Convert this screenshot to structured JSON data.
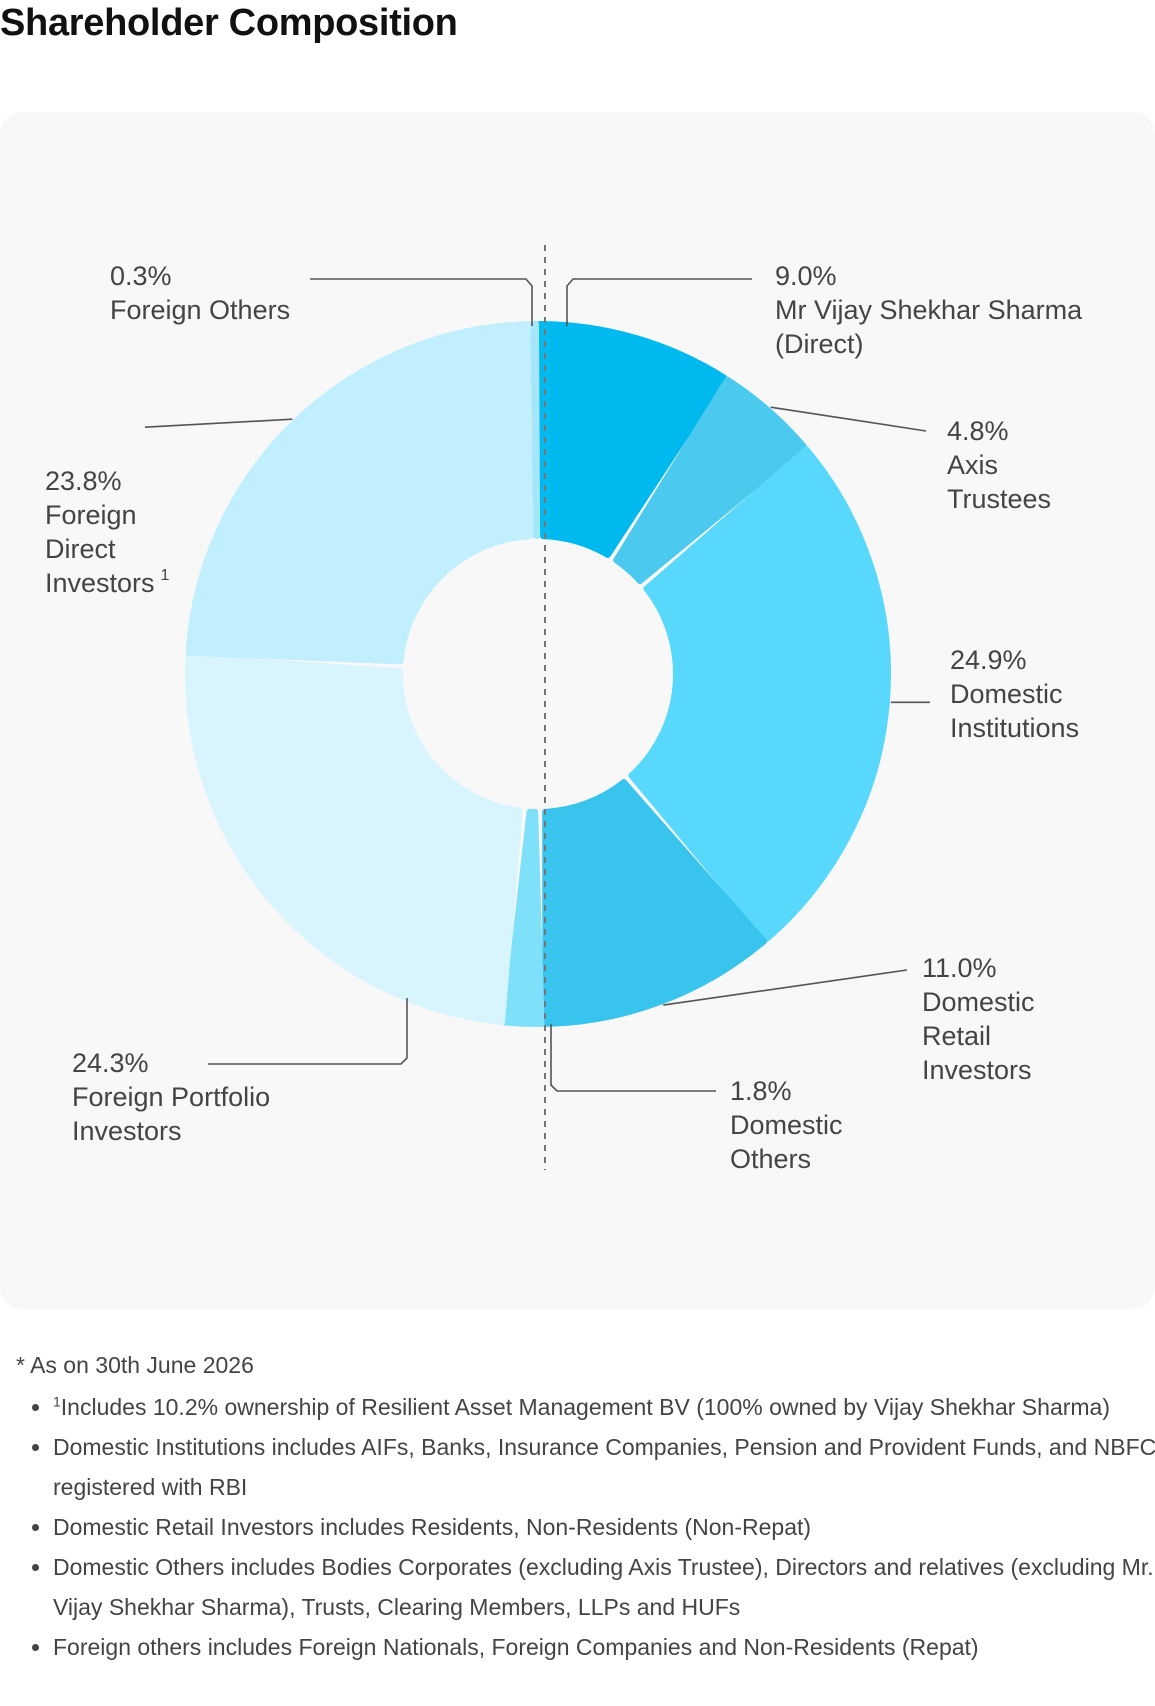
{
  "title": "Shareholder Composition",
  "colors": {
    "panel": "#f8f8f8",
    "leader": "#555555",
    "divider": "#777777"
  },
  "chart_data": {
    "type": "pie",
    "variant": "donut",
    "title": "Shareholder Composition",
    "slices": [
      {
        "label": "Mr Vijay Shekhar Sharma (Direct)",
        "value": 9.0,
        "value_label": "9.0%",
        "color": "#00b9ee"
      },
      {
        "label": "Axis Trustees",
        "value": 4.8,
        "value_label": "4.8%",
        "color": "#4bc9ee"
      },
      {
        "label": "Domestic Institutions",
        "value": 24.9,
        "value_label": "24.9%",
        "color": "#58d8fc"
      },
      {
        "label": "Domestic Retail Investors",
        "value": 11.0,
        "value_label": "11.0%",
        "color": "#38c4ed"
      },
      {
        "label": "Domestic Others",
        "value": 1.8,
        "value_label": "1.8%",
        "color": "#7fe0fa"
      },
      {
        "label": "Foreign Portfolio Investors",
        "value": 24.3,
        "value_label": "24.3%",
        "color": "#d8f4fd"
      },
      {
        "label": "Foreign Direct Investors",
        "value": 23.8,
        "value_label": "23.8%",
        "color": "#c2effd",
        "footnote_mark": "1"
      },
      {
        "label": "Foreign Others",
        "value": 0.3,
        "value_label": "0.3%",
        "color": "#a5e6fa"
      }
    ],
    "annotations": {
      "divider": "Domestic | Foreign split (dashed vertical line)"
    }
  },
  "labels": [
    {
      "pct": "9.0%",
      "lines": [
        "Mr Vijay Shekhar Sharma",
        "(Direct)"
      ]
    },
    {
      "pct": "4.8%",
      "lines": [
        "Axis",
        "Trustees"
      ]
    },
    {
      "pct": "24.9%",
      "lines": [
        "Domestic",
        "Institutions"
      ]
    },
    {
      "pct": "11.0%",
      "lines": [
        "Domestic",
        "Retail",
        "Investors"
      ]
    },
    {
      "pct": "1.8%",
      "lines": [
        "Domestic",
        "Others"
      ]
    },
    {
      "pct": "24.3%",
      "lines": [
        "Foreign Portfolio",
        "Investors"
      ]
    },
    {
      "pct": "23.8%",
      "lines": [
        "Foreign",
        "Direct",
        "Investors"
      ],
      "sup": "1"
    },
    {
      "pct": "0.3%",
      "lines": [
        "Foreign Others"
      ]
    }
  ],
  "notes": {
    "heading": "* As on 30th June 2026",
    "items": [
      {
        "sup": "1",
        "text": "Includes 10.2% ownership of Resilient Asset Management BV (100% owned by Vijay Shekhar Sharma)"
      },
      {
        "sup": "",
        "text": "Domestic Institutions includes AIFs, Banks, Insurance Companies, Pension and Provident Funds, and NBFCs registered with RBI"
      },
      {
        "sup": "",
        "text": "Domestic Retail Investors includes Residents, Non-Residents (Non-Repat)"
      },
      {
        "sup": "",
        "text": "Domestic Others includes Bodies Corporates (excluding Axis Trustee), Directors and relatives (excluding Mr. Vijay Shekhar Sharma), Trusts, Clearing Members, LLPs and HUFs"
      },
      {
        "sup": "",
        "text": "Foreign others includes Foreign Nationals, Foreign Companies and Non-Residents (Repat)"
      }
    ]
  }
}
